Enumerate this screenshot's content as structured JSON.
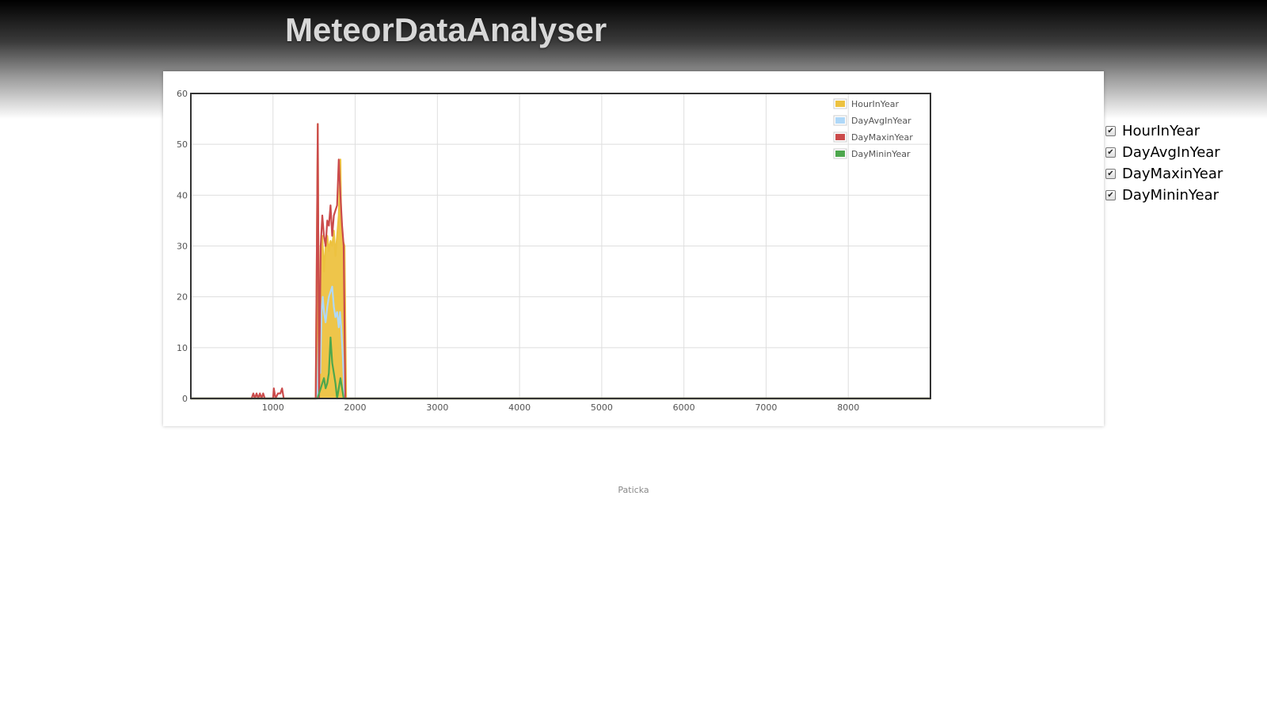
{
  "app": {
    "title": "MeteorDataAnalyser"
  },
  "footer": {
    "text": "Paticka"
  },
  "series_toggles": [
    {
      "label": "HourInYear",
      "checked": true,
      "check_glyph": "✔"
    },
    {
      "label": "DayAvgInYear",
      "checked": true,
      "check_glyph": "✔"
    },
    {
      "label": "DayMaxinYear",
      "checked": true,
      "check_glyph": "✔"
    },
    {
      "label": "DayMininYear",
      "checked": true,
      "check_glyph": "✔"
    }
  ],
  "chart_data": {
    "type": "area",
    "xlim": [
      0,
      9000
    ],
    "ylim": [
      0,
      60
    ],
    "x_ticks": [
      1000,
      2000,
      3000,
      4000,
      5000,
      6000,
      7000,
      8000
    ],
    "y_ticks": [
      0,
      10,
      20,
      30,
      40,
      50,
      60
    ],
    "grid": true,
    "legend_position": "top-right",
    "series": [
      {
        "name": "HourInYear",
        "color": "#edc240",
        "fill": true,
        "points": [
          [
            0,
            0
          ],
          [
            1520,
            0
          ],
          [
            1545,
            54
          ],
          [
            1560,
            0
          ],
          [
            1580,
            30
          ],
          [
            1600,
            32
          ],
          [
            1620,
            25
          ],
          [
            1640,
            30
          ],
          [
            1660,
            32
          ],
          [
            1680,
            29
          ],
          [
            1700,
            31
          ],
          [
            1720,
            30
          ],
          [
            1740,
            33
          ],
          [
            1760,
            28
          ],
          [
            1780,
            32
          ],
          [
            1800,
            36
          ],
          [
            1820,
            47
          ],
          [
            1830,
            34
          ],
          [
            1850,
            31
          ],
          [
            1870,
            30
          ],
          [
            1890,
            0
          ],
          [
            9000,
            0
          ]
        ]
      },
      {
        "name": "DayAvgInYear",
        "color": "#afd8f8",
        "fill": false,
        "points": [
          [
            0,
            0
          ],
          [
            1540,
            0
          ],
          [
            1560,
            15
          ],
          [
            1575,
            5
          ],
          [
            1590,
            17
          ],
          [
            1605,
            20
          ],
          [
            1620,
            17
          ],
          [
            1640,
            15
          ],
          [
            1660,
            18
          ],
          [
            1680,
            20
          ],
          [
            1700,
            21
          ],
          [
            1720,
            22
          ],
          [
            1740,
            18
          ],
          [
            1760,
            16
          ],
          [
            1780,
            17
          ],
          [
            1800,
            14
          ],
          [
            1815,
            17
          ],
          [
            1830,
            14
          ],
          [
            1850,
            8
          ],
          [
            1870,
            0
          ],
          [
            9000,
            0
          ]
        ]
      },
      {
        "name": "DayMaxinYear",
        "color": "#cb4b4b",
        "fill": false,
        "points": [
          [
            0,
            0
          ],
          [
            740,
            0
          ],
          [
            760,
            1
          ],
          [
            780,
            0
          ],
          [
            800,
            1
          ],
          [
            820,
            0
          ],
          [
            840,
            1
          ],
          [
            860,
            0
          ],
          [
            880,
            1
          ],
          [
            900,
            0
          ],
          [
            1000,
            0
          ],
          [
            1010,
            2
          ],
          [
            1030,
            0
          ],
          [
            1060,
            1
          ],
          [
            1090,
            1
          ],
          [
            1110,
            2
          ],
          [
            1130,
            0
          ],
          [
            1520,
            0
          ],
          [
            1545,
            54
          ],
          [
            1560,
            0
          ],
          [
            1580,
            30
          ],
          [
            1600,
            36
          ],
          [
            1620,
            32
          ],
          [
            1640,
            30
          ],
          [
            1660,
            35
          ],
          [
            1680,
            34
          ],
          [
            1700,
            38
          ],
          [
            1720,
            32
          ],
          [
            1740,
            36
          ],
          [
            1760,
            37
          ],
          [
            1780,
            38
          ],
          [
            1800,
            47
          ],
          [
            1820,
            40
          ],
          [
            1840,
            34
          ],
          [
            1860,
            30
          ],
          [
            1880,
            0
          ],
          [
            9000,
            0
          ]
        ]
      },
      {
        "name": "DayMininYear",
        "color": "#4da74d",
        "fill": false,
        "points": [
          [
            0,
            0
          ],
          [
            1540,
            0
          ],
          [
            1560,
            1
          ],
          [
            1580,
            2
          ],
          [
            1600,
            3
          ],
          [
            1620,
            4
          ],
          [
            1640,
            2
          ],
          [
            1660,
            3
          ],
          [
            1680,
            5
          ],
          [
            1700,
            12
          ],
          [
            1720,
            7
          ],
          [
            1740,
            5
          ],
          [
            1760,
            3
          ],
          [
            1780,
            0
          ],
          [
            1800,
            2
          ],
          [
            1820,
            4
          ],
          [
            1840,
            2
          ],
          [
            1860,
            0
          ],
          [
            9000,
            0
          ]
        ]
      }
    ]
  }
}
